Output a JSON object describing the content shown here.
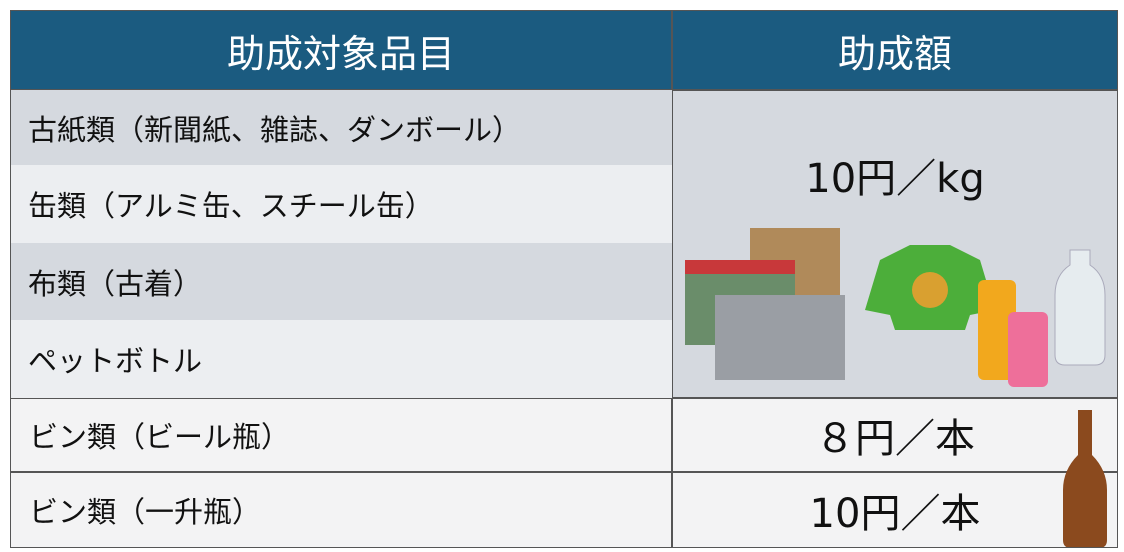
{
  "table": {
    "header": [
      "助成対象品目",
      "助成額"
    ],
    "groups": [
      {
        "items": [
          "古紙類（新聞紙、雑誌、ダンボール）",
          "缶類（アルミ缶、スチール缶）",
          "布類（古着）",
          "ペットボトル"
        ],
        "amount": "10円／kg"
      },
      {
        "items": [
          "ビン類（ビール瓶）"
        ],
        "amount": "８円／本"
      },
      {
        "items": [
          "ビン類（一升瓶）"
        ],
        "amount": "10円／本"
      }
    ]
  }
}
